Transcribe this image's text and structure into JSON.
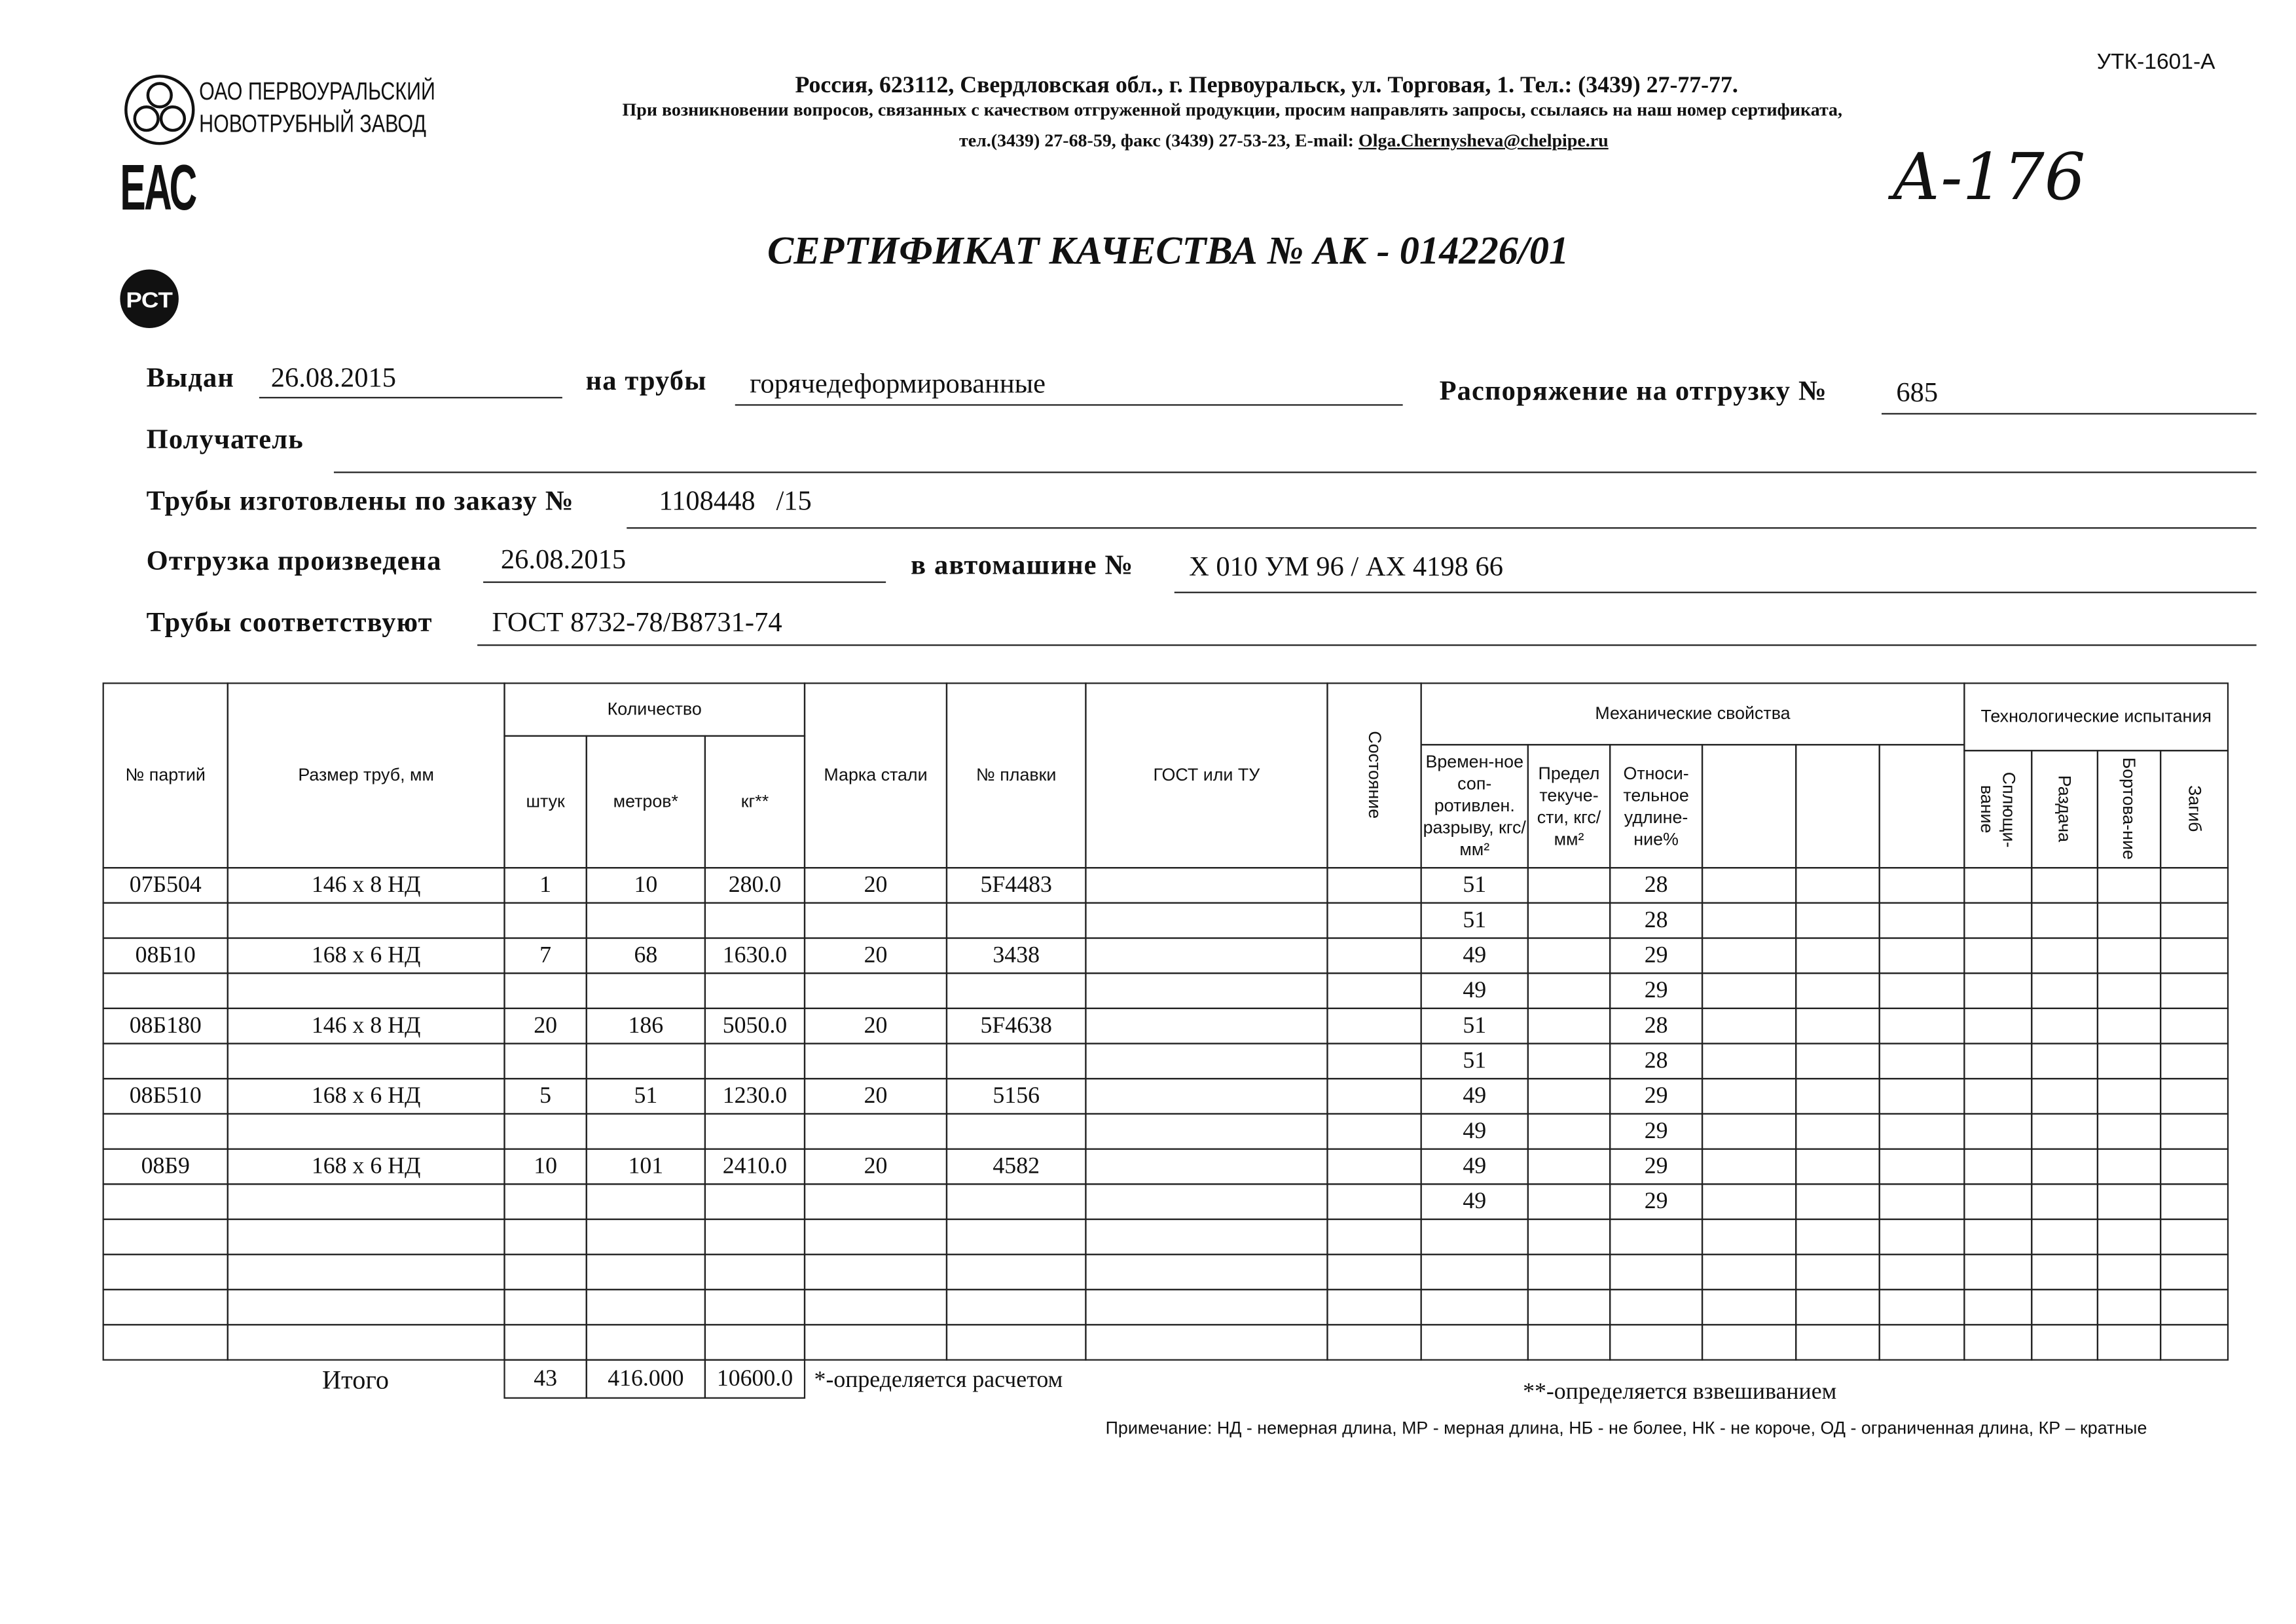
{
  "form_code": "УТК-1601-А",
  "company": {
    "name_line1": "ОАО ПЕРВОУРАЛЬСКИЙ",
    "name_line2": "НОВОТРУБНЫЙ ЗАВОД",
    "eac_mark": "ЕАС",
    "pct_mark": "РСТ"
  },
  "header": {
    "address": "Россия, 623112, Свердловская обл., г. Первоуральск, ул. Торговая, 1. Тел.: (3439) 27-77-77.",
    "note": "При возникновении вопросов, связанных с качеством отгруженной продукции, просим направлять запросы, ссылаясь на наш номер сертификата,",
    "contacts": "тел.(3439) 27-68-59, факс (3439) 27-53-23,  E-mail: ",
    "email": "Olga.Chernysheva@chelpipe.ru"
  },
  "handwritten_note": "А-176",
  "title": "СЕРТИФИКАТ КАЧЕСТВА   №  АК -  014226/01",
  "fields": {
    "issued_label": "Выдан",
    "issued": "26.08.2015",
    "pipes_label": "на трубы",
    "pipes": "горячедеформированные",
    "order_label": "Распоряжение на отгрузку №",
    "order": "685",
    "recipient_label": "Получатель",
    "recipient": "",
    "made_label": "Трубы изготовлены по заказу №",
    "made": "1108448   /15",
    "shipped_label": "Отгрузка произведена",
    "shipped": "26.08.2015",
    "vehicle_label": "в автомашине №",
    "vehicle": "Х 010 УМ 96 / АХ 4198 66",
    "conform_label": "Трубы соответствуют",
    "conform": "ГОСТ 8732-78/В8731-74"
  },
  "table": {
    "headers": {
      "party": "№ партий",
      "size": "Размер труб, мм",
      "qty": "Количество",
      "pcs": "штук",
      "m": "метров*",
      "kg": "кг**",
      "steel": "Марка стали",
      "heat": "№ плавки",
      "gost": "ГОСТ или ТУ",
      "state": "Состояние",
      "mech": "Механические свойства",
      "tensile": "Времен-ное соп-ротивлен. разрыву, кгс/мм²",
      "yield": "Предел текуче-сти, кгс/мм²",
      "elong": "Относи-тельное удлине-ние%",
      "tech": "Технологические испытания",
      "flat": "Сплющи-вание",
      "expand": "Раздача",
      "flange": "Бортова-ние",
      "bend": "Загиб"
    },
    "parties": [
      {
        "party": "07Б504",
        "size": "146 х 8 НД",
        "pcs": "1",
        "m": "10",
        "kg": "280.0",
        "steel": "20",
        "heat": "5F4483"
      },
      {
        "party": "08Б10",
        "size": "168 х 6 НД",
        "pcs": "7",
        "m": "68",
        "kg": "1630.0",
        "steel": "20",
        "heat": "3438"
      },
      {
        "party": "08Б180",
        "size": "146 х 8 НД",
        "pcs": "20",
        "m": "186",
        "kg": "5050.0",
        "steel": "20",
        "heat": "5F4638"
      },
      {
        "party": "08Б510",
        "size": "168 х 6 НД",
        "pcs": "5",
        "m": "51",
        "kg": "1230.0",
        "steel": "20",
        "heat": "5156"
      },
      {
        "party": "08Б9",
        "size": "168 х 6 НД",
        "pcs": "10",
        "m": "101",
        "kg": "2410.0",
        "steel": "20",
        "heat": "4582"
      }
    ],
    "mech": [
      [
        "51",
        "28"
      ],
      [
        "51",
        "28"
      ],
      [
        "49",
        "29"
      ],
      [
        "49",
        "29"
      ],
      [
        "51",
        "28"
      ],
      [
        "51",
        "28"
      ],
      [
        "49",
        "29"
      ],
      [
        "49",
        "29"
      ],
      [
        "49",
        "29"
      ],
      [
        "49",
        "29"
      ]
    ],
    "total": {
      "label": "Итого",
      "pcs": "43",
      "m": "416.000",
      "kg": "10600.0"
    }
  },
  "footnotes": {
    "calc": "*-определяется расчетом",
    "weigh": "**-определяется взвешиванием",
    "remark": "Примечание: НД - немерная длина, МР - мерная длина, НБ - не более, НК - не короче, ОД - ограниченная длина, КР – кратные"
  }
}
